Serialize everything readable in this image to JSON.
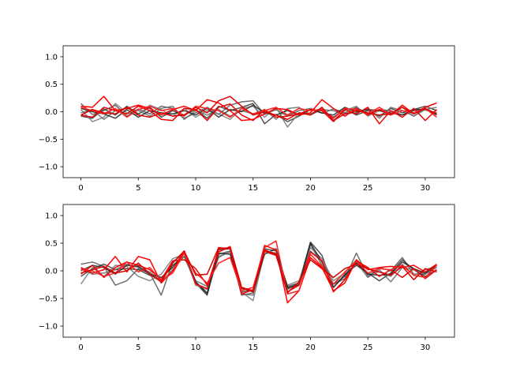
{
  "figure": {
    "background": "#ffffff"
  },
  "chart_data": [
    {
      "type": "line",
      "title": "",
      "xlabel": "",
      "ylabel": "",
      "xlim": [
        -1.55,
        32.55
      ],
      "ylim": [
        -1.2,
        1.2
      ],
      "x_ticks": [
        0,
        5,
        10,
        15,
        20,
        25,
        30
      ],
      "y_ticks": [
        -1.0,
        -0.5,
        0.0,
        0.5,
        1.0
      ],
      "x_tick_labels": [
        "0",
        "5",
        "10",
        "15",
        "20",
        "25",
        "30"
      ],
      "y_tick_labels": [
        "−1.0",
        "−0.5",
        "0.0",
        "0.5",
        "1.0"
      ],
      "grid": false,
      "x": [
        0,
        1,
        2,
        3,
        4,
        5,
        6,
        7,
        8,
        9,
        10,
        11,
        12,
        13,
        14,
        15,
        16,
        17,
        18,
        19,
        20,
        21,
        22,
        23,
        24,
        25,
        26,
        27,
        28,
        29,
        30,
        31
      ],
      "series": [
        {
          "color": "#555555",
          "values": [
            0.15,
            -0.05,
            0.02,
            0.12,
            -0.08,
            0.05,
            -0.04,
            0.1,
            0.06,
            -0.12,
            -0.02,
            0.08,
            -0.05,
            0.12,
            0.18,
            0.2,
            -0.05,
            0.04,
            -0.08,
            0.02,
            0.06,
            -0.03,
            0.05,
            -0.02,
            0.08,
            -0.04,
            0.04,
            0.02,
            -0.06,
            0.05,
            0.03,
            -0.02
          ]
        },
        {
          "color": "#333333",
          "values": [
            -0.08,
            -0.12,
            0.05,
            -0.06,
            0.1,
            -0.04,
            0.08,
            -0.1,
            0.02,
            -0.06,
            0.04,
            -0.12,
            0.1,
            0.02,
            0.08,
            0.15,
            -0.22,
            -0.05,
            -0.18,
            -0.08,
            0.04,
            0.02,
            -0.1,
            0.05,
            -0.06,
            0.02,
            -0.08,
            0.06,
            -0.02,
            0.04,
            0.1,
            0.02
          ]
        },
        {
          "color": "#777777",
          "values": [
            0.04,
            -0.18,
            -0.1,
            0.15,
            -0.02,
            -0.06,
            0.12,
            0.04,
            -0.08,
            0.06,
            -0.1,
            0.02,
            -0.04,
            -0.14,
            0.06,
            0.1,
            -0.1,
            0.08,
            -0.28,
            -0.02,
            -0.04,
            0.06,
            -0.16,
            0.02,
            0.1,
            -0.08,
            0.02,
            -0.06,
            0.08,
            -0.08,
            0.06,
            -0.05
          ]
        },
        {
          "color": "#666666",
          "values": [
            -0.02,
            0.04,
            -0.14,
            0.02,
            0.06,
            0.02,
            -0.08,
            0.06,
            0.1,
            -0.14,
            0.02,
            -0.06,
            0.04,
            -0.08,
            0.02,
            -0.04,
            0.04,
            -0.14,
            0.06,
            0.08,
            -0.06,
            0.04,
            0.02,
            -0.04,
            -0.02,
            0.06,
            -0.12,
            0.08,
            0.02,
            -0.08,
            0.04,
            0.08
          ]
        },
        {
          "color": "#222222",
          "values": [
            0.06,
            0.0,
            -0.04,
            -0.12,
            0.04,
            -0.1,
            0.02,
            -0.02,
            -0.04,
            0.02,
            -0.06,
            0.06,
            -0.1,
            0.04,
            0.0,
            0.12,
            -0.02,
            -0.06,
            0.02,
            -0.06,
            0.04,
            -0.02,
            -0.06,
            0.08,
            0.0,
            0.04,
            0.02,
            -0.02,
            -0.06,
            0.02,
            0.06,
            -0.06
          ]
        },
        {
          "color": "#ff0000",
          "values": [
            0.1,
            0.08,
            0.28,
            0.02,
            0.06,
            0.12,
            0.06,
            -0.06,
            0.04,
            0.1,
            0.02,
            0.22,
            0.16,
            0.02,
            -0.16,
            -0.14,
            -0.04,
            0.06,
            0.04,
            -0.06,
            -0.02,
            0.22,
            0.06,
            -0.08,
            0.06,
            -0.06,
            0.04,
            -0.06,
            0.12,
            -0.04,
            0.08,
            0.16
          ]
        },
        {
          "color": "#ee0000",
          "values": [
            -0.06,
            -0.1,
            0.08,
            0.02,
            -0.04,
            0.1,
            0.02,
            -0.14,
            -0.16,
            0.06,
            0.04,
            -0.16,
            0.08,
            0.14,
            -0.06,
            -0.16,
            0.04,
            -0.1,
            -0.08,
            -0.04,
            0.04,
            0.02,
            -0.18,
            0.04,
            -0.04,
            0.08,
            -0.22,
            0.02,
            -0.1,
            0.06,
            -0.16,
            0.04
          ]
        },
        {
          "color": "#ff2020",
          "values": [
            0.08,
            0.02,
            -0.04,
            0.06,
            -0.1,
            0.04,
            0.1,
            0.02,
            0.06,
            -0.08,
            0.1,
            0.06,
            0.02,
            -0.1,
            0.06,
            -0.04,
            0.02,
            0.08,
            -0.06,
            0.06,
            0.02,
            0.04,
            -0.12,
            0.06,
            0.04,
            -0.04,
            0.08,
            -0.06,
            0.02,
            -0.02,
            0.06,
            -0.1
          ]
        },
        {
          "color": "#dd0000",
          "values": [
            -0.06,
            0.04,
            -0.02,
            -0.04,
            0.08,
            -0.06,
            -0.1,
            -0.02,
            -0.08,
            -0.06,
            0.08,
            -0.02,
            0.2,
            0.28,
            0.1,
            -0.06,
            0.0,
            -0.06,
            -0.14,
            -0.02,
            -0.06,
            0.08,
            -0.16,
            -0.04,
            0.02,
            -0.02,
            -0.06,
            -0.04,
            0.08,
            -0.04,
            0.06,
            -0.04
          ]
        }
      ]
    },
    {
      "type": "line",
      "title": "",
      "xlabel": "",
      "ylabel": "",
      "xlim": [
        -1.55,
        32.55
      ],
      "ylim": [
        -1.2,
        1.2
      ],
      "x_ticks": [
        0,
        5,
        10,
        15,
        20,
        25,
        30
      ],
      "y_ticks": [
        -1.0,
        -0.5,
        0.0,
        0.5,
        1.0
      ],
      "x_tick_labels": [
        "0",
        "5",
        "10",
        "15",
        "20",
        "25",
        "30"
      ],
      "y_tick_labels": [
        "−1.0",
        "−0.5",
        "0.0",
        "0.5",
        "1.0"
      ],
      "grid": false,
      "x": [
        0,
        1,
        2,
        3,
        4,
        5,
        6,
        7,
        8,
        9,
        10,
        11,
        12,
        13,
        14,
        15,
        16,
        17,
        18,
        19,
        20,
        21,
        22,
        23,
        24,
        25,
        26,
        27,
        28,
        29,
        30,
        31
      ],
      "series": [
        {
          "color": "#555555",
          "values": [
            0.12,
            0.16,
            0.08,
            -0.26,
            -0.18,
            0.04,
            -0.04,
            -0.44,
            0.16,
            0.32,
            -0.2,
            -0.42,
            0.3,
            0.36,
            -0.44,
            -0.4,
            0.36,
            0.32,
            -0.28,
            -0.22,
            0.48,
            0.1,
            -0.24,
            -0.14,
            0.32,
            -0.1,
            0.06,
            0.0,
            0.24,
            -0.06,
            -0.06,
            0.12
          ]
        },
        {
          "color": "#333333",
          "values": [
            -0.1,
            0.04,
            0.12,
            0.02,
            0.04,
            0.02,
            -0.08,
            -0.16,
            0.1,
            0.26,
            -0.22,
            -0.44,
            0.38,
            0.4,
            -0.38,
            -0.36,
            0.4,
            0.36,
            -0.32,
            -0.22,
            0.52,
            0.28,
            -0.3,
            -0.06,
            0.1,
            -0.04,
            -0.18,
            -0.04,
            0.2,
            0.02,
            -0.1,
            0.02
          ]
        },
        {
          "color": "#777777",
          "values": [
            -0.24,
            0.06,
            -0.1,
            0.1,
            0.08,
            -0.1,
            -0.18,
            -0.06,
            0.22,
            0.3,
            -0.26,
            -0.34,
            0.24,
            0.36,
            -0.38,
            -0.54,
            0.34,
            0.28,
            -0.26,
            -0.18,
            0.42,
            0.22,
            -0.18,
            -0.04,
            0.2,
            -0.06,
            -0.02,
            -0.1,
            0.12,
            -0.08,
            0.02,
            0.08
          ]
        },
        {
          "color": "#666666",
          "values": [
            0.04,
            -0.06,
            -0.04,
            0.02,
            0.12,
            0.06,
            -0.02,
            -0.2,
            0.02,
            0.26,
            -0.18,
            -0.28,
            0.26,
            0.34,
            -0.42,
            -0.44,
            0.38,
            0.28,
            -0.34,
            -0.24,
            0.36,
            0.18,
            -0.24,
            -0.1,
            0.16,
            -0.12,
            0.02,
            -0.2,
            0.06,
            0.02,
            -0.06,
            0.06
          ]
        },
        {
          "color": "#222222",
          "values": [
            0.0,
            0.1,
            0.06,
            -0.06,
            0.1,
            0.08,
            -0.06,
            -0.12,
            0.06,
            0.34,
            -0.2,
            -0.4,
            0.32,
            0.3,
            -0.32,
            -0.38,
            0.3,
            0.4,
            -0.3,
            -0.26,
            0.5,
            0.16,
            -0.3,
            -0.08,
            0.14,
            -0.06,
            -0.08,
            -0.06,
            0.16,
            0.04,
            -0.04,
            0.1
          ]
        },
        {
          "color": "#ff0000",
          "values": [
            0.06,
            -0.04,
            0.02,
            0.26,
            -0.02,
            0.26,
            0.2,
            -0.22,
            0.0,
            0.36,
            -0.24,
            -0.32,
            0.4,
            0.42,
            -0.42,
            -0.34,
            0.46,
            0.38,
            -0.58,
            -0.36,
            0.24,
            0.06,
            -0.36,
            -0.22,
            0.2,
            0.02,
            0.06,
            0.08,
            0.06,
            0.1,
            -0.02,
            0.12
          ]
        },
        {
          "color": "#ee0000",
          "values": [
            -0.06,
            0.1,
            -0.12,
            0.06,
            0.16,
            0.1,
            0.02,
            -0.16,
            0.18,
            0.2,
            0.04,
            -0.26,
            0.34,
            0.44,
            -0.3,
            -0.38,
            0.36,
            0.28,
            -0.38,
            -0.26,
            0.34,
            0.18,
            -0.38,
            -0.16,
            0.18,
            0.06,
            -0.1,
            0.02,
            -0.12,
            0.04,
            -0.14,
            0.02
          ]
        },
        {
          "color": "#ff2020",
          "values": [
            0.02,
            0.0,
            -0.1,
            -0.04,
            0.16,
            -0.02,
            0.06,
            -0.18,
            -0.04,
            0.32,
            -0.04,
            -0.22,
            0.14,
            0.24,
            -0.36,
            -0.3,
            0.42,
            0.54,
            -0.42,
            -0.36,
            0.3,
            0.08,
            -0.24,
            -0.02,
            0.18,
            -0.04,
            0.04,
            0.02,
            0.1,
            -0.08,
            -0.12,
            0.1
          ]
        },
        {
          "color": "#dd0000",
          "values": [
            -0.04,
            0.02,
            0.08,
            -0.04,
            0.0,
            0.14,
            -0.06,
            -0.2,
            0.14,
            0.36,
            -0.08,
            -0.06,
            0.42,
            0.4,
            -0.3,
            -0.36,
            0.38,
            0.3,
            -0.4,
            -0.2,
            0.2,
            0.04,
            -0.12,
            0.04,
            0.12,
            0.04,
            -0.02,
            -0.08,
            0.08,
            -0.16,
            0.04,
            -0.02
          ]
        }
      ]
    }
  ]
}
